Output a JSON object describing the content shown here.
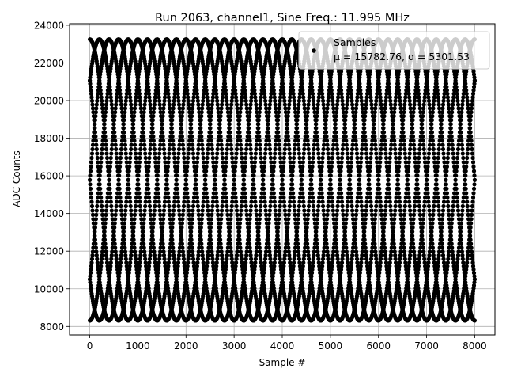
{
  "chart_data": {
    "type": "scatter",
    "title": "Run 2063, channel1, Sine Freq.: 11.995 MHz",
    "xlabel": "Sample #",
    "ylabel": "ADC Counts",
    "xlim": [
      -420,
      8420
    ],
    "ylim": [
      7550,
      24080
    ],
    "xticks": [
      0,
      1000,
      2000,
      3000,
      4000,
      5000,
      6000,
      7000,
      8000
    ],
    "xtick_labels": [
      "0",
      "1000",
      "2000",
      "3000",
      "4000",
      "5000",
      "6000",
      "7000",
      "8000"
    ],
    "yticks": [
      8000,
      10000,
      12000,
      14000,
      16000,
      18000,
      20000,
      22000,
      24000
    ],
    "ytick_labels": [
      "8000",
      "10000",
      "12000",
      "14000",
      "16000",
      "18000",
      "20000",
      "22000",
      "24000"
    ],
    "grid": true,
    "legend": {
      "placement": "top-right",
      "entries": [
        {
          "label": "Samples",
          "stats": "μ = 15782.76, σ = 5301.53"
        }
      ]
    },
    "series": [
      {
        "name": "Samples",
        "color": "#000000",
        "marker": "circle",
        "model": {
          "mean": 15782.76,
          "amplitude": 7470,
          "period": 1600,
          "sample_range": [
            0,
            8000
          ],
          "phases_deg": [
            0,
            45,
            90,
            135,
            180,
            225,
            270,
            315
          ]
        }
      }
    ]
  }
}
